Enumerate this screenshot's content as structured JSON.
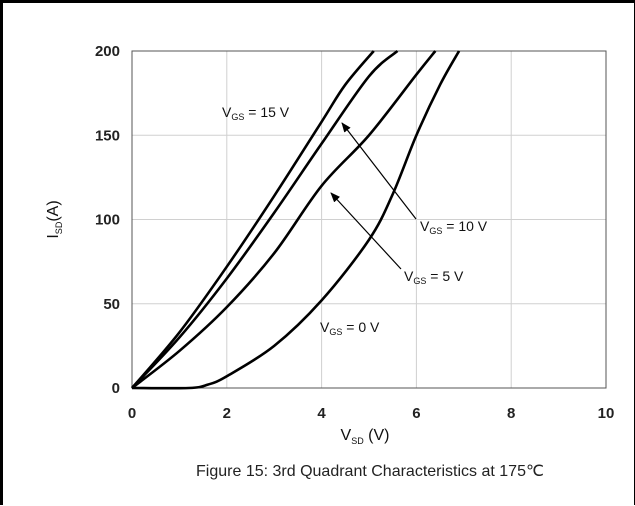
{
  "chart_data": {
    "type": "line",
    "caption": "Figure 15: 3rd Quadrant Characteristics at  175℃",
    "xlabel": {
      "main": "V",
      "sub": "SD",
      "rest": " (V)"
    },
    "ylabel": {
      "main": "I",
      "sub": "SD",
      "rest": "(A)"
    },
    "xlim": [
      0,
      10
    ],
    "ylim": [
      0,
      200
    ],
    "xticks": [
      0,
      2,
      4,
      6,
      8,
      10
    ],
    "yticks": [
      0,
      50,
      100,
      150,
      200
    ],
    "grid": true,
    "series": [
      {
        "name": "V_GS = 15 V",
        "label_main": "V",
        "label_sub": "GS",
        "label_rest": " = 15 V",
        "x": [
          0,
          1,
          2,
          3,
          4,
          4.5,
          5.1
        ],
        "y": [
          0,
          33,
          72,
          114,
          158,
          180,
          200
        ]
      },
      {
        "name": "V_GS = 10 V",
        "label_main": "V",
        "label_sub": "GS",
        "label_rest": " = 10 V",
        "x": [
          0,
          1,
          2,
          3,
          4,
          5,
          5.6
        ],
        "y": [
          0,
          30,
          65,
          104,
          145,
          185,
          200
        ]
      },
      {
        "name": "V_GS = 5 V",
        "label_main": "V",
        "label_sub": "GS",
        "label_rest": " = 5 V",
        "x": [
          0,
          1,
          2,
          3,
          4,
          5,
          6,
          6.4
        ],
        "y": [
          0,
          22,
          48,
          80,
          120,
          150,
          186,
          200
        ]
      },
      {
        "name": "V_GS = 0 V",
        "label_main": "V",
        "label_sub": "GS",
        "label_rest": " = 0 V",
        "x": [
          0,
          1.2,
          1.6,
          2,
          3,
          4,
          5,
          5.5,
          6,
          6.5,
          6.9
        ],
        "y": [
          0,
          0,
          2,
          7,
          25,
          52,
          88,
          115,
          150,
          180,
          200
        ]
      }
    ]
  }
}
